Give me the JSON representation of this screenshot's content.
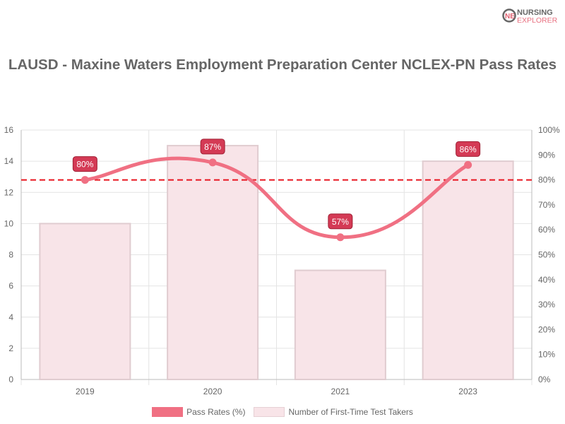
{
  "logo": {
    "line1": "NURSING",
    "line2": "EXPLORER"
  },
  "chart_data": {
    "type": "bar+line",
    "title": "LAUSD - Maxine Waters Employment Preparation Center NCLEX-PN Pass Rates",
    "categories": [
      "2019",
      "2020",
      "2021",
      "2023"
    ],
    "series": [
      {
        "name": "Pass Rates (%)",
        "type": "line",
        "axis": "right",
        "values": [
          80,
          87,
          57,
          86
        ],
        "labels": [
          "80%",
          "87%",
          "57%",
          "86%"
        ],
        "color": "#f07083"
      },
      {
        "name": "Number of First-Time Test Takers",
        "type": "bar",
        "axis": "left",
        "values": [
          10,
          15,
          7,
          14
        ],
        "color": "#f8e4e8"
      }
    ],
    "reference_line": {
      "value": 80,
      "axis": "right",
      "style": "dashed",
      "color": "#e8141e"
    },
    "y_left": {
      "min": 0,
      "max": 16,
      "ticks": [
        "0",
        "2",
        "4",
        "6",
        "8",
        "10",
        "12",
        "14",
        "16"
      ]
    },
    "y_right": {
      "min": 0,
      "max": 100,
      "ticks": [
        "0%",
        "10%",
        "20%",
        "30%",
        "40%",
        "50%",
        "60%",
        "70%",
        "80%",
        "90%",
        "100%"
      ]
    },
    "grid": true,
    "legend": "bottom"
  }
}
